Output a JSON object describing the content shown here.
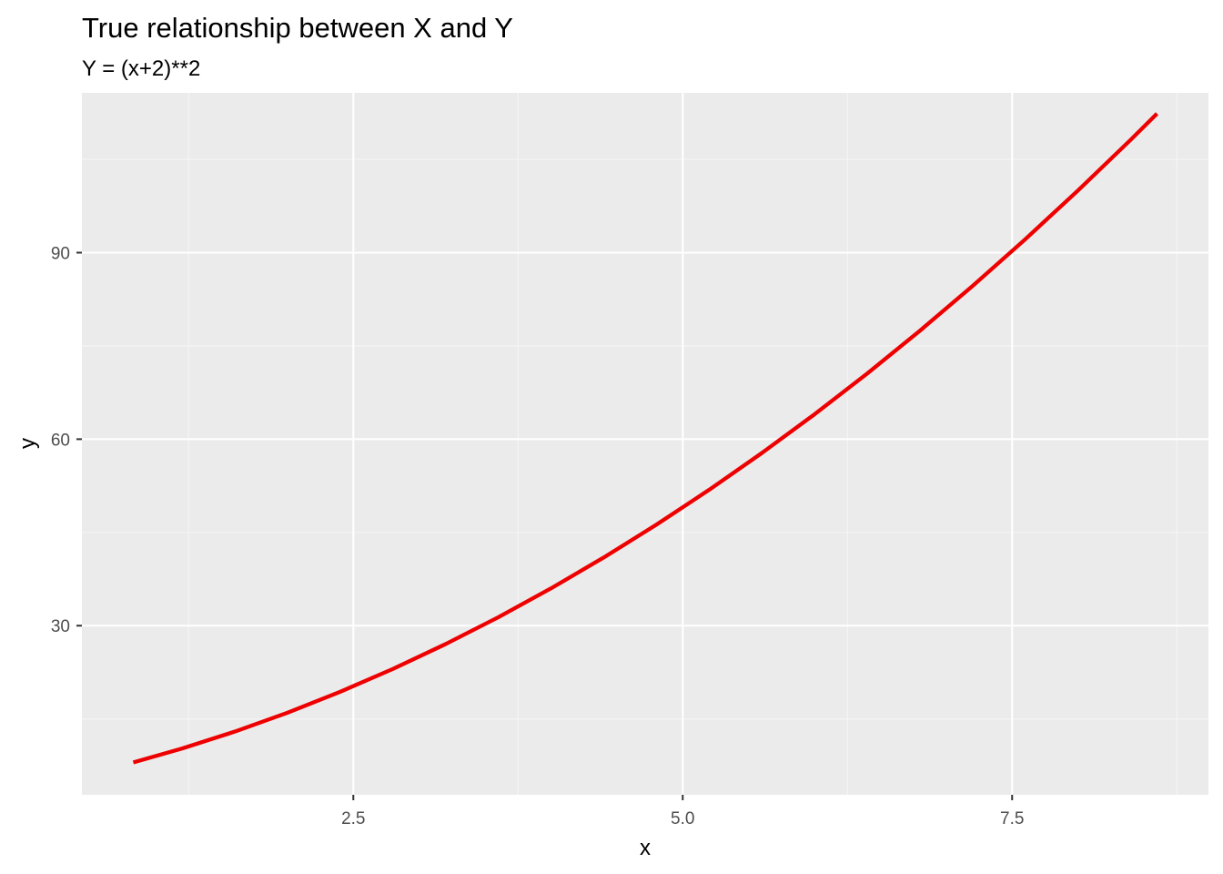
{
  "chart_data": {
    "type": "line",
    "title": "True relationship between X and Y",
    "subtitle": "Y = (x+2)**2",
    "xlabel": "x",
    "ylabel": "y",
    "xlim": [
      0.44,
      8.99
    ],
    "ylim": [
      2.8,
      115.7
    ],
    "x_ticks": [
      {
        "value": 2.5,
        "label": "2.5"
      },
      {
        "value": 5.0,
        "label": "5.0"
      },
      {
        "value": 7.5,
        "label": "7.5"
      }
    ],
    "x_minor_ticks": [
      1.25,
      3.75,
      6.25,
      8.75
    ],
    "y_ticks": [
      {
        "value": 30,
        "label": "30"
      },
      {
        "value": 60,
        "label": "60"
      },
      {
        "value": 90,
        "label": "90"
      }
    ],
    "y_minor_ticks": [
      15,
      45,
      75,
      105
    ],
    "grid": true,
    "legend": "none",
    "colors": {
      "panel_background": "#ebebeb",
      "grid_major": "#ffffff",
      "grid_minor": "#f5f5f5",
      "line": "#ee0000"
    },
    "series": [
      {
        "x": [
          0.83,
          1.2,
          1.6,
          2.0,
          2.4,
          2.8,
          3.2,
          3.6,
          4.0,
          4.4,
          4.8,
          5.2,
          5.6,
          6.0,
          6.4,
          6.8,
          7.2,
          7.6,
          8.0,
          8.4,
          8.6
        ],
        "values": [
          8.01,
          10.24,
          12.96,
          16.0,
          19.36,
          23.04,
          27.04,
          31.36,
          36.0,
          40.96,
          46.24,
          51.84,
          57.76,
          64.0,
          70.56,
          77.44,
          84.64,
          92.16,
          100.0,
          108.16,
          112.36
        ]
      }
    ]
  }
}
